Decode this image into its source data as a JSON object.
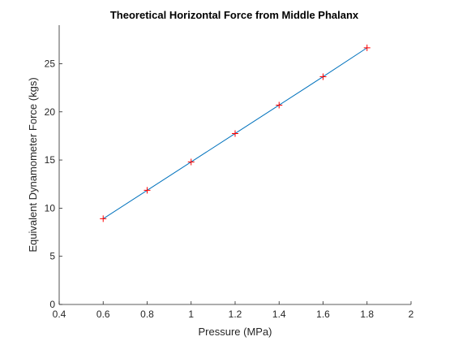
{
  "chart_data": {
    "type": "line",
    "title": "Theoretical Horizontal Force from Middle Phalanx",
    "xlabel": "Pressure (MPa)",
    "ylabel": "Equivalent Dynamometer Force (kgs)",
    "xlim": [
      0.4,
      2
    ],
    "ylim": [
      0,
      29
    ],
    "xticks": [
      0.4,
      0.6,
      0.8,
      1,
      1.2,
      1.4,
      1.6,
      1.8,
      2
    ],
    "xtick_labels": [
      "0.4",
      "0.6",
      "0.8",
      "1",
      "1.2",
      "1.4",
      "1.6",
      "1.8",
      "2"
    ],
    "yticks": [
      0,
      5,
      10,
      15,
      20,
      25
    ],
    "ytick_labels": [
      "0",
      "5",
      "10",
      "15",
      "20",
      "25"
    ],
    "grid": false,
    "series": [
      {
        "x": [
          0.6,
          0.8,
          1.0,
          1.2,
          1.4,
          1.6,
          1.8
        ],
        "y": [
          8.9,
          11.85,
          14.8,
          17.75,
          20.7,
          23.65,
          26.65
        ],
        "line_color": "#0072BD",
        "marker": "+",
        "marker_color": "#FF0000"
      }
    ]
  }
}
